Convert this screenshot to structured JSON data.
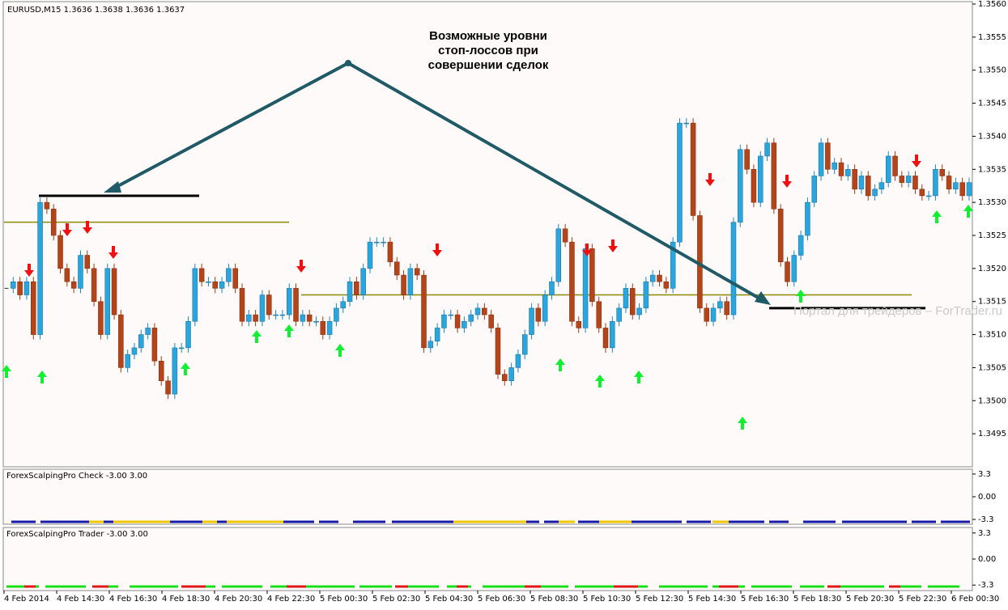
{
  "chart_data": {
    "type": "candlestick",
    "title": "EURUSD,M15  1.3636 1.3638 1.3636 1.3637",
    "annotation": [
      "Возможные уровни",
      "стоп-лоссов при",
      "совершении сделок"
    ],
    "watermark": "Портал для трейдеров – ForTrader.ru",
    "ylim": [
      1.349,
      1.356
    ],
    "yticks": [
      1.3495,
      {
        "value": 1.35,
        "label": "1.3500"
      },
      1.3505,
      {
        "value": 1.351,
        "label": "1.3510"
      },
      1.3515,
      {
        "value": 1.352,
        "label": "1.3520"
      },
      1.3525,
      {
        "value": 1.353,
        "label": "1.3530"
      },
      1.3535,
      {
        "value": 1.354,
        "label": "1.3540"
      },
      1.3545,
      {
        "value": 1.355,
        "label": "1.3550"
      },
      1.3555,
      {
        "value": 1.356,
        "label": "1.3560"
      }
    ],
    "x_labels": [
      "4 Feb 2014",
      "4 Feb 14:30",
      "4 Feb 16:30",
      "4 Feb 18:30",
      "4 Feb 20:30",
      "4 Feb 22:30",
      "5 Feb 00:30",
      "5 Feb 02:30",
      "5 Feb 04:30",
      "5 Feb 06:30",
      "5 Feb 08:30",
      "5 Feb 10:30",
      "5 Feb 12:30",
      "5 Feb 14:30",
      "5 Feb 16:30",
      "5 Feb 18:30",
      "5 Feb 20:30",
      "5 Feb 22:30",
      "6 Feb 00:30"
    ],
    "up_color": "#2aa6de",
    "down_color": "#b4441a",
    "close": [
      1.3517,
      1.3518,
      1.3516,
      1.3518,
      1.351,
      1.353,
      1.3529,
      1.3525,
      1.352,
      1.3518,
      1.3517,
      1.3522,
      1.352,
      1.3515,
      1.351,
      1.352,
      1.3513,
      1.3505,
      1.3507,
      1.3508,
      1.351,
      1.3511,
      1.3506,
      1.3503,
      1.3501,
      1.3508,
      1.3508,
      1.3512,
      1.352,
      1.3518,
      1.3518,
      1.3517,
      1.3518,
      1.352,
      1.3517,
      1.3512,
      1.3513,
      1.3512,
      1.3516,
      1.3513,
      1.3513,
      1.3513,
      1.3517,
      1.3512,
      1.3513,
      1.3512,
      1.3512,
      1.351,
      1.3512,
      1.3514,
      1.3515,
      1.3518,
      1.3516,
      1.352,
      1.3524,
      1.3524,
      1.3524,
      1.3521,
      1.3519,
      1.3516,
      1.352,
      1.3519,
      1.3508,
      1.3509,
      1.3511,
      1.3513,
      1.3513,
      1.3511,
      1.3512,
      1.3513,
      1.3514,
      1.3513,
      1.3511,
      1.3504,
      1.3503,
      1.3505,
      1.3507,
      1.351,
      1.3514,
      1.3512,
      1.3516,
      1.3518,
      1.3526,
      1.3524,
      1.3512,
      1.3511,
      1.3523,
      1.3515,
      1.3511,
      1.3508,
      1.3512,
      1.3514,
      1.3517,
      1.3513,
      1.3514,
      1.3518,
      1.3519,
      1.3518,
      1.3517,
      1.3524,
      1.3542,
      1.3542,
      1.3528,
      1.3514,
      1.3512,
      1.3514,
      1.3515,
      1.3513,
      1.3527,
      1.3538,
      1.3535,
      1.353,
      1.3537,
      1.3539,
      1.3529,
      1.3521,
      1.3518,
      1.3522,
      1.3525,
      1.353,
      1.3534,
      1.3539,
      1.3535,
      1.3536,
      1.3534,
      1.3535,
      1.3532,
      1.3534,
      1.3531,
      1.3532,
      1.3533,
      1.3537,
      1.3534,
      1.3533,
      1.3534,
      1.3532,
      1.3531,
      1.3531,
      1.3535,
      1.3534,
      1.3532,
      1.3533,
      1.3531,
      1.3533
    ],
    "levels": [
      {
        "value": 1.3531,
        "color": "#000000"
      },
      {
        "value": 1.3527,
        "color": "#8a8a00"
      },
      {
        "value": 1.3516,
        "color": "#8a8a00"
      },
      {
        "value": 1.3514,
        "color": "#000000"
      }
    ],
    "indicators": [
      {
        "name": "ForexScalpingPro Check -3.00 3.00",
        "ylim": [
          -4,
          4
        ],
        "yticks": [
          3.3,
          {
            "value": 0,
            "label": "0.00"
          },
          -3.3
        ]
      },
      {
        "name": "ForexScalpingPro Trader -3.00 3.00",
        "ylim": [
          -4,
          4
        ],
        "yticks": [
          3.3,
          {
            "value": 0,
            "label": "0.00"
          },
          -3.3
        ]
      }
    ]
  }
}
